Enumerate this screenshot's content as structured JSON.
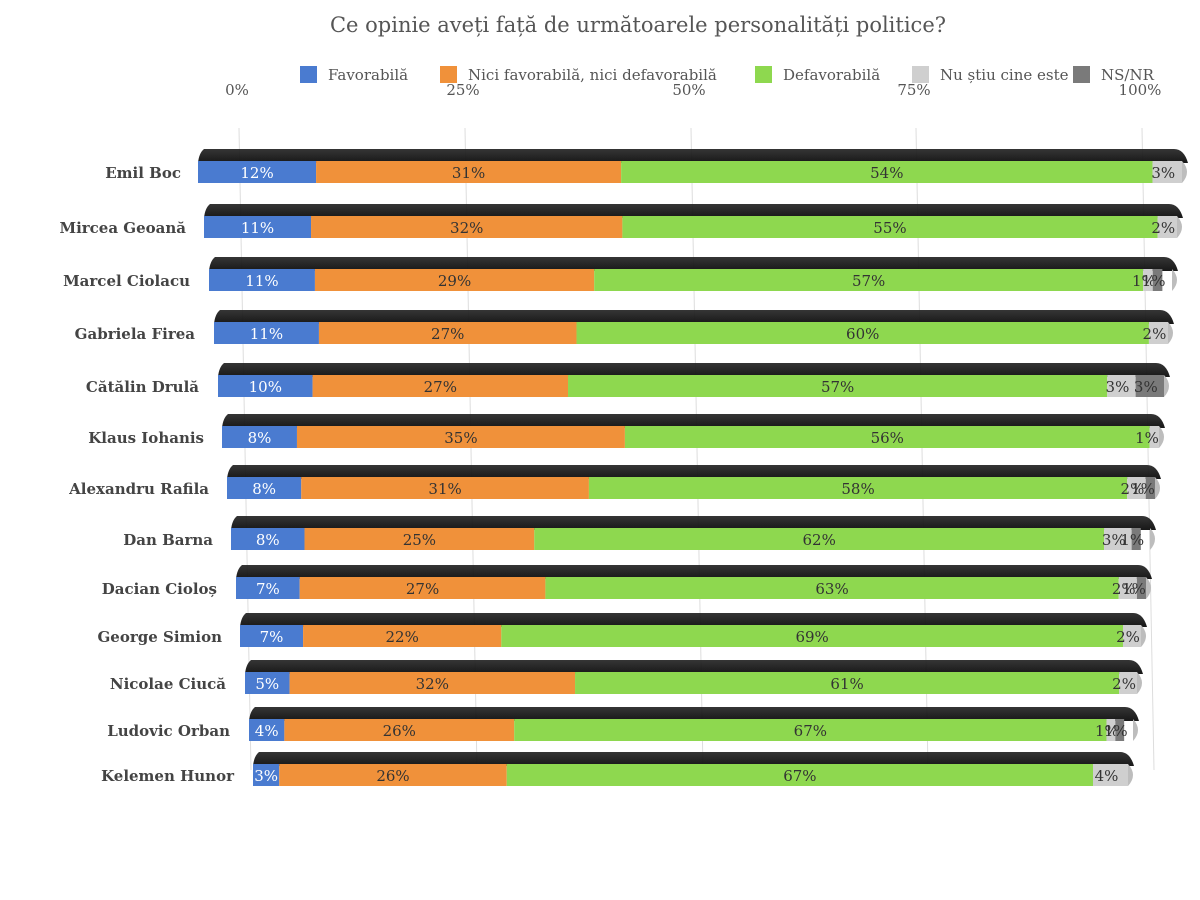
{
  "chart_data": {
    "type": "bar",
    "orientation": "horizontal",
    "stacked": true,
    "title": "Ce opinie aveți față de următoarele personalități politice?",
    "xlim": [
      0,
      100
    ],
    "x_ticks": [
      "0%",
      "25%",
      "50%",
      "75%",
      "100%"
    ],
    "legend_position": "top",
    "categories": [
      "Emil Boc",
      "Mircea Geoană",
      "Marcel Ciolacu",
      "Gabriela Firea",
      "Cătălin Drulă",
      "Klaus Iohanis",
      "Alexandru Rafila",
      "Dan Barna",
      "Dacian Cioloș",
      "George Simion",
      "Nicolae Ciucă",
      "Ludovic Orban",
      "Kelemen Hunor"
    ],
    "series": [
      {
        "name": "Favorabilă",
        "color": "#4a7bd0",
        "values": [
          12,
          11,
          11,
          11,
          10,
          8,
          8,
          8,
          7,
          7,
          5,
          4,
          3
        ]
      },
      {
        "name": "Nici favorabilă, nici defavorabilă",
        "color": "#f0913a",
        "values": [
          31,
          32,
          29,
          27,
          27,
          35,
          31,
          25,
          27,
          22,
          32,
          26,
          26
        ]
      },
      {
        "name": "Defavorabilă",
        "color": "#8ed84f",
        "values": [
          54,
          55,
          57,
          60,
          57,
          56,
          58,
          62,
          63,
          69,
          61,
          67,
          67
        ]
      },
      {
        "name": "Nu știu cine este",
        "color": "#cfcfcf",
        "values": [
          3,
          2,
          1,
          2,
          3,
          1,
          2,
          3,
          2,
          2,
          2,
          1,
          4
        ]
      },
      {
        "name": "NS/NR",
        "color": "#7a7a7a",
        "values": [
          0,
          0,
          1,
          0,
          3,
          0,
          1,
          1,
          1,
          0,
          0,
          1,
          0
        ]
      }
    ],
    "data_labels": [
      [
        "12%",
        "31%",
        "54%",
        "3%",
        ""
      ],
      [
        "11%",
        "32%",
        "55%",
        "2%",
        ""
      ],
      [
        "11%",
        "29%",
        "57%",
        "1%",
        "1%"
      ],
      [
        "11%",
        "27%",
        "60%",
        "2%",
        ""
      ],
      [
        "10%",
        "27%",
        "57%",
        "3%",
        "3%"
      ],
      [
        "8%",
        "35%",
        "56%",
        "1%",
        ""
      ],
      [
        "8%",
        "31%",
        "58%",
        "2%",
        "1%"
      ],
      [
        "8%",
        "25%",
        "62%",
        "3%",
        "1%"
      ],
      [
        "7%",
        "27%",
        "63%",
        "2%",
        "1%"
      ],
      [
        "7%",
        "22%",
        "69%",
        "2%",
        ""
      ],
      [
        "5%",
        "32%",
        "61%",
        "2%",
        ""
      ],
      [
        "4%",
        "26%",
        "67%",
        "1%",
        "1%"
      ],
      [
        "3%",
        "26%",
        "67%",
        "4%",
        ""
      ]
    ],
    "grid": true
  }
}
